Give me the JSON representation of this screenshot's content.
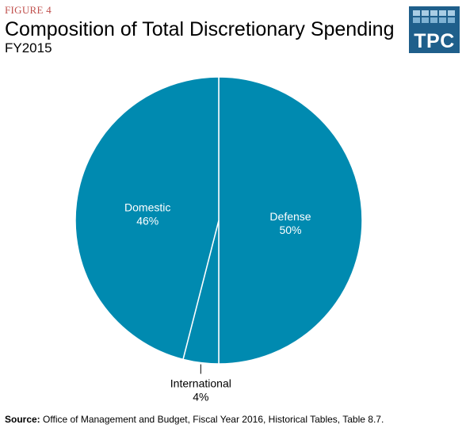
{
  "figure_label": "FIGURE 4",
  "title": "Composition of Total Discretionary Spending",
  "subtitle": "FY2015",
  "logo": {
    "text": "TPC"
  },
  "colors": {
    "pie_fill": "#008ab0",
    "pie_border": "#ffffff",
    "figure_label": "#c0504d",
    "logo_bg": "#1f5f8b"
  },
  "chart_data": {
    "type": "pie",
    "title": "Composition of Total Discretionary Spending",
    "slices": [
      {
        "label": "Defense",
        "value": 50,
        "display": "50%"
      },
      {
        "label": "International",
        "value": 4,
        "display": "4%"
      },
      {
        "label": "Domestic",
        "value": 46,
        "display": "46%"
      }
    ]
  },
  "source": {
    "label": "Source:",
    "text": "Office of Management and Budget, Fiscal Year 2016, Historical Tables, Table 8.7."
  }
}
